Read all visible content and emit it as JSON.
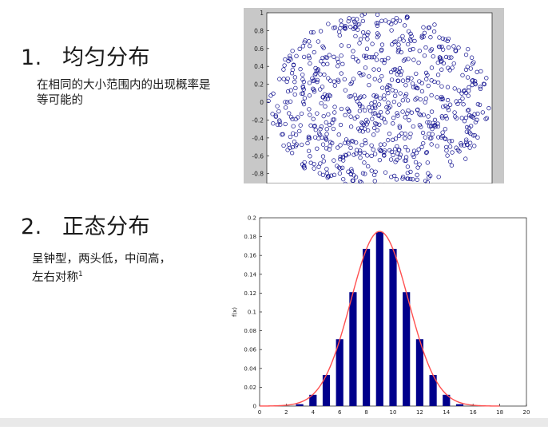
{
  "section1": {
    "number": "1.",
    "title": "均匀分布",
    "description": "在相同的大小范围内的出现概率是等可能的"
  },
  "section2": {
    "number": "2.",
    "title": "正态分布",
    "description_line1": "呈钟型，两头低，中间高，",
    "description_line2": "左右对称",
    "description_sup": "1"
  },
  "chart_data": [
    {
      "type": "scatter",
      "marker": "open-circle",
      "color": "#0a0a8c",
      "shape": "points uniformly distributed within a unit circle",
      "ylim": [
        -1,
        1
      ],
      "yticks": [
        "1",
        "0.8",
        "0.6",
        "0.4",
        "0.2",
        "0",
        "-0.2",
        "-0.4",
        "-0.6",
        "-0.8"
      ],
      "n_points": 800,
      "radius": 1
    },
    {
      "type": "bar",
      "title": "",
      "xlabel": "x",
      "ylabel": "f(x)",
      "xlim": [
        0,
        20
      ],
      "ylim": [
        0,
        0.2
      ],
      "xticks": [
        "0",
        "2",
        "4",
        "6",
        "8",
        "10",
        "12",
        "14",
        "16",
        "18",
        "20"
      ],
      "yticks": [
        "0",
        "0.02",
        "0.04",
        "0.06",
        "0.08",
        "0.1",
        "0.12",
        "0.14",
        "0.16",
        "0.18",
        "0.2"
      ],
      "bar_color": "#00008b",
      "curve_color": "#ff5050",
      "categories": [
        3,
        4,
        5,
        6,
        7,
        8,
        9,
        10,
        11,
        12,
        13,
        14,
        15
      ],
      "values": [
        0.002,
        0.012,
        0.033,
        0.071,
        0.121,
        0.167,
        0.185,
        0.167,
        0.121,
        0.071,
        0.033,
        0.012,
        0.002
      ],
      "curve": {
        "mean": 9,
        "sd": 2.15
      }
    }
  ]
}
